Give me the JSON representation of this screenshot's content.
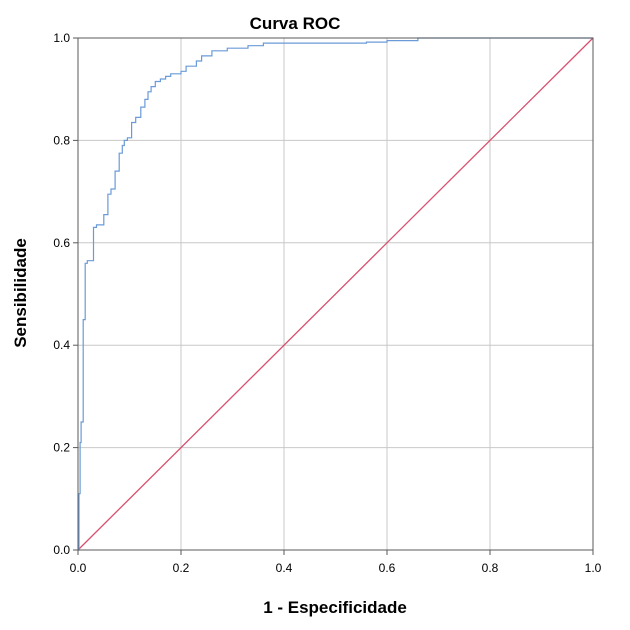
{
  "chart_data": {
    "type": "line",
    "title": "Curva ROC",
    "xlabel": "1 - Especificidade",
    "ylabel": "Sensibilidade",
    "xlim": [
      0,
      1
    ],
    "ylim": [
      0,
      1
    ],
    "xticks": [
      "0.0",
      "0.2",
      "0.4",
      "0.6",
      "0.8",
      "1.0"
    ],
    "yticks": [
      "0.0",
      "0.2",
      "0.4",
      "0.6",
      "0.8",
      "1.0"
    ],
    "grid": true,
    "series": [
      {
        "color": "#6a9bd8",
        "step": true,
        "x": [
          0.0,
          0.002,
          0.004,
          0.006,
          0.01,
          0.014,
          0.018,
          0.022,
          0.03,
          0.036,
          0.05,
          0.058,
          0.064,
          0.072,
          0.08,
          0.086,
          0.09,
          0.096,
          0.104,
          0.112,
          0.122,
          0.13,
          0.136,
          0.142,
          0.15,
          0.16,
          0.17,
          0.18,
          0.2,
          0.21,
          0.23,
          0.24,
          0.26,
          0.29,
          0.33,
          0.36,
          0.4,
          0.48,
          0.56,
          0.6,
          0.66,
          0.8,
          1.0
        ],
        "y": [
          0.0,
          0.11,
          0.21,
          0.25,
          0.45,
          0.56,
          0.565,
          0.565,
          0.63,
          0.635,
          0.655,
          0.695,
          0.705,
          0.74,
          0.775,
          0.79,
          0.8,
          0.805,
          0.835,
          0.845,
          0.865,
          0.88,
          0.895,
          0.905,
          0.915,
          0.92,
          0.925,
          0.93,
          0.935,
          0.945,
          0.955,
          0.965,
          0.975,
          0.98,
          0.985,
          0.99,
          0.99,
          0.99,
          0.992,
          0.995,
          1.0,
          1.0,
          1.0
        ]
      },
      {
        "color": "#d9506e",
        "step": false,
        "x": [
          0,
          1
        ],
        "y": [
          0,
          1
        ]
      }
    ]
  }
}
